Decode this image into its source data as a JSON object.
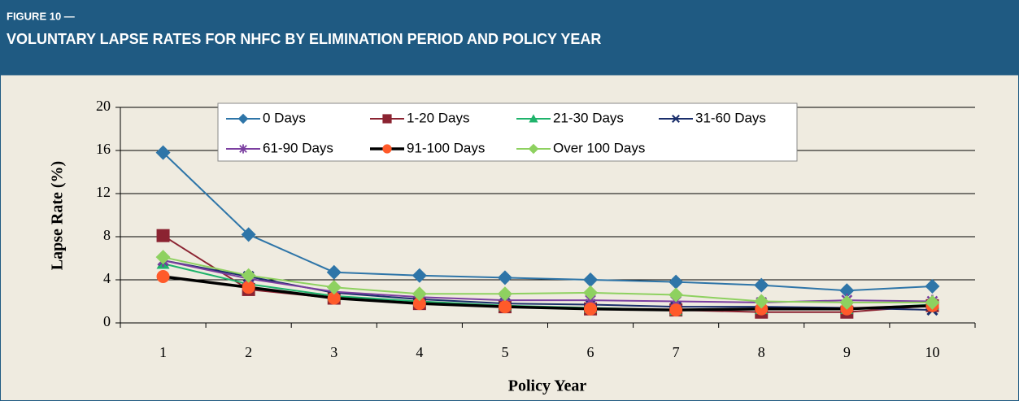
{
  "chart_data": {
    "type": "line",
    "figure_label": "FIGURE 10 —",
    "title": "VOLUNTARY LAPSE RATES FOR NHFC BY ELIMINATION PERIOD AND POLICY YEAR",
    "x_label": "Policy Year",
    "y_label": "Lapse Rate (%)",
    "categories": [
      "1",
      "2",
      "3",
      "4",
      "5",
      "6",
      "7",
      "8",
      "9",
      "10"
    ],
    "ylim": [
      0,
      20
    ],
    "yticks": [
      0,
      4,
      8,
      12,
      16,
      20
    ],
    "grid": true,
    "legend": "top",
    "series": [
      {
        "name": "0 Days",
        "color": "#2e75a8",
        "marker": "diamond",
        "values": [
          15.8,
          8.2,
          4.7,
          4.4,
          4.2,
          4.0,
          3.8,
          3.5,
          3.0,
          3.4
        ]
      },
      {
        "name": "1-20 Days",
        "color": "#8b2331",
        "marker": "square",
        "values": [
          8.1,
          3.1,
          2.3,
          1.8,
          1.5,
          1.3,
          1.2,
          1.0,
          1.0,
          1.6
        ]
      },
      {
        "name": "21-30 Days",
        "color": "#1fb36b",
        "marker": "triangle",
        "values": [
          5.5,
          3.6,
          2.5,
          2.0,
          1.6,
          1.4,
          1.2,
          1.3,
          1.3,
          1.7
        ]
      },
      {
        "name": "31-60 Days",
        "color": "#1a2e6b",
        "marker": "x",
        "values": [
          5.8,
          4.3,
          2.8,
          2.2,
          1.8,
          1.7,
          1.5,
          1.5,
          1.4,
          1.2
        ]
      },
      {
        "name": "61-90 Days",
        "color": "#7b3fa0",
        "marker": "star",
        "values": [
          5.8,
          4.1,
          2.9,
          2.4,
          2.1,
          2.1,
          2.0,
          1.9,
          2.1,
          2.0
        ]
      },
      {
        "name": "91-100 Days",
        "color": "#000000",
        "marker_color": "#ff5a2a",
        "marker": "circle",
        "values": [
          4.3,
          3.3,
          2.3,
          1.8,
          1.5,
          1.3,
          1.2,
          1.3,
          1.3,
          1.6
        ]
      },
      {
        "name": "Over 100 Days",
        "color": "#8ed160",
        "marker": "diamond",
        "values": [
          6.1,
          4.4,
          3.3,
          2.7,
          2.7,
          2.8,
          2.6,
          2.0,
          1.9,
          1.9
        ]
      }
    ]
  }
}
